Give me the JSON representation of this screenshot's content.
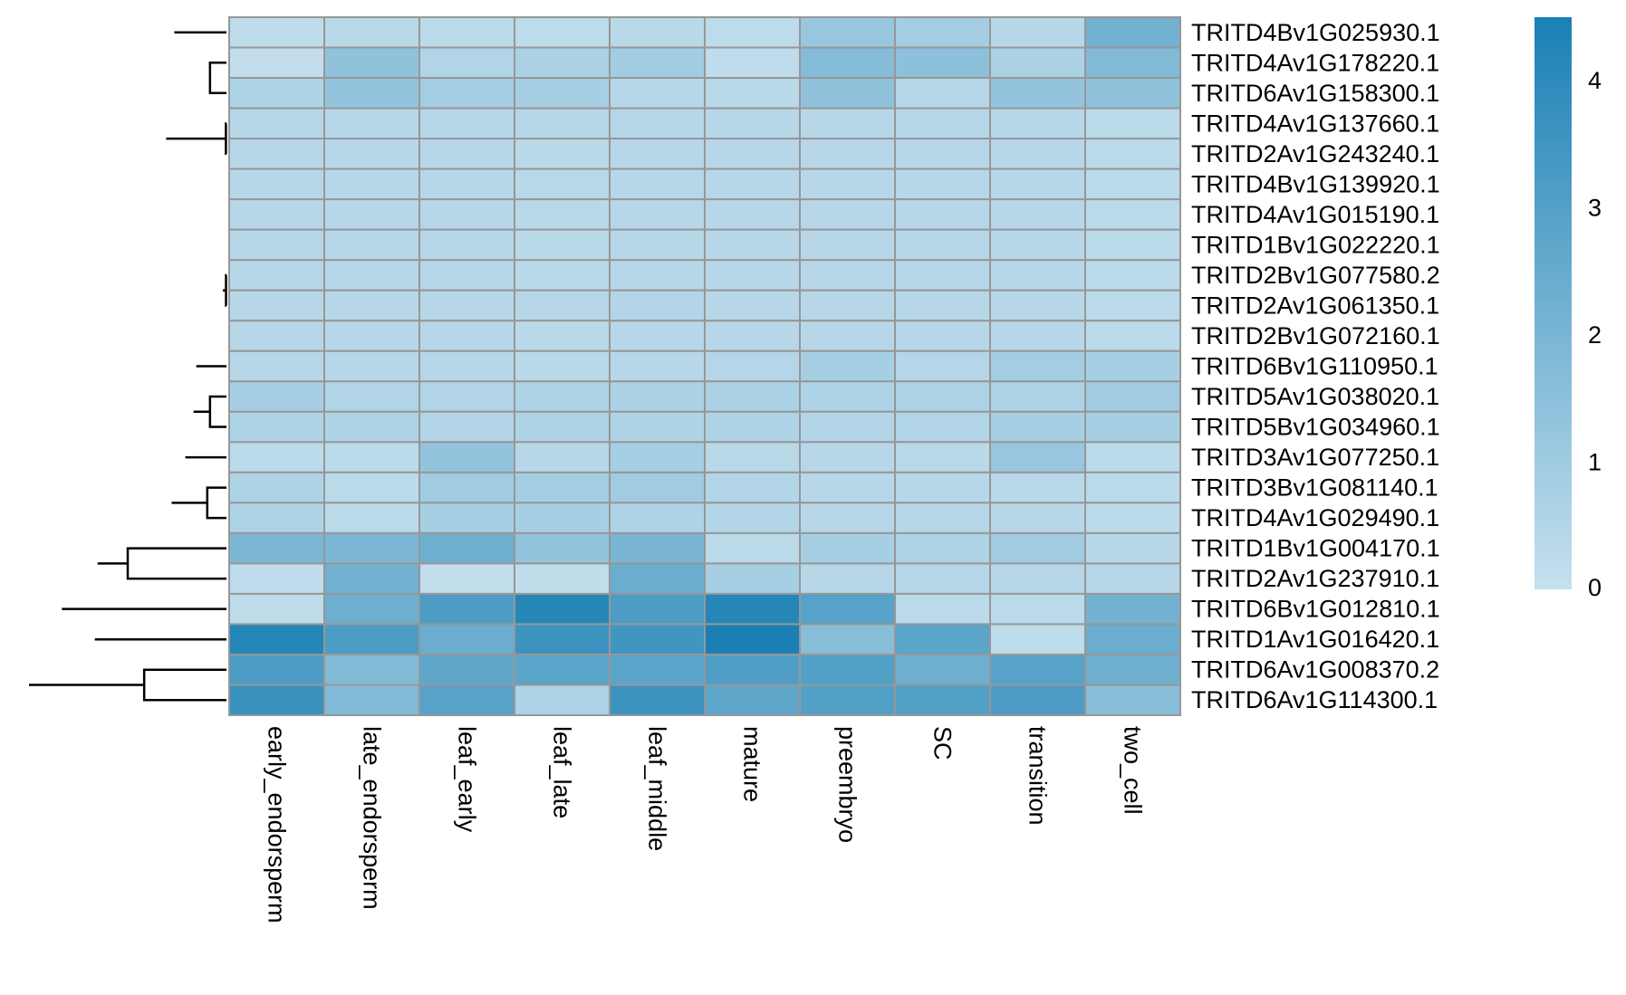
{
  "chart_data": {
    "type": "heatmap",
    "title": "",
    "xlabel": "",
    "ylabel": "",
    "columns": [
      "early_endorsperm",
      "late_endorsperm",
      "leaf_early",
      "leaf_late",
      "leaf_middle",
      "mature",
      "preembryo",
      "SC",
      "transition",
      "two_cell"
    ],
    "rows": [
      "TRITD4Bv1G025930.1",
      "TRITD4Av1G178220.1",
      "TRITD6Av1G158300.1",
      "TRITD4Av1G137660.1",
      "TRITD2Av1G243240.1",
      "TRITD4Bv1G139920.1",
      "TRITD4Av1G015190.1",
      "TRITD1Bv1G022220.1",
      "TRITD2Bv1G077580.2",
      "TRITD2Av1G061350.1",
      "TRITD2Bv1G072160.1",
      "TRITD6Bv1G110950.1",
      "TRITD5Av1G038020.1",
      "TRITD5Bv1G034960.1",
      "TRITD3Av1G077250.1",
      "TRITD3Bv1G081140.1",
      "TRITD4Av1G029490.1",
      "TRITD1Bv1G004170.1",
      "TRITD2Av1G237910.1",
      "TRITD6Bv1G012810.1",
      "TRITD1Av1G016420.1",
      "TRITD6Av1G008370.2",
      "TRITD6Av1G114300.1"
    ],
    "values": [
      [
        0.2,
        0.35,
        0.3,
        0.25,
        0.35,
        0.25,
        1.2,
        0.9,
        0.4,
        2.2
      ],
      [
        0.1,
        1.4,
        0.55,
        0.7,
        0.95,
        0.2,
        1.7,
        1.5,
        0.7,
        1.8
      ],
      [
        0.6,
        1.3,
        0.9,
        0.8,
        0.4,
        0.35,
        1.4,
        0.4,
        1.3,
        1.4
      ],
      [
        0.4,
        0.4,
        0.4,
        0.4,
        0.4,
        0.4,
        0.4,
        0.4,
        0.4,
        0.3
      ],
      [
        0.4,
        0.4,
        0.4,
        0.35,
        0.4,
        0.4,
        0.4,
        0.4,
        0.4,
        0.3
      ],
      [
        0.4,
        0.4,
        0.4,
        0.35,
        0.4,
        0.4,
        0.4,
        0.4,
        0.4,
        0.3
      ],
      [
        0.4,
        0.4,
        0.4,
        0.35,
        0.4,
        0.4,
        0.4,
        0.4,
        0.4,
        0.3
      ],
      [
        0.4,
        0.4,
        0.4,
        0.35,
        0.4,
        0.4,
        0.4,
        0.4,
        0.4,
        0.3
      ],
      [
        0.4,
        0.4,
        0.4,
        0.35,
        0.4,
        0.4,
        0.4,
        0.4,
        0.4,
        0.3
      ],
      [
        0.4,
        0.4,
        0.4,
        0.4,
        0.5,
        0.4,
        0.4,
        0.4,
        0.4,
        0.3
      ],
      [
        0.4,
        0.4,
        0.4,
        0.35,
        0.4,
        0.4,
        0.4,
        0.4,
        0.4,
        0.3
      ],
      [
        0.4,
        0.4,
        0.4,
        0.35,
        0.4,
        0.45,
        0.8,
        0.45,
        0.9,
        0.8
      ],
      [
        0.8,
        0.55,
        0.55,
        0.6,
        0.7,
        0.7,
        0.6,
        0.6,
        0.6,
        1.0
      ],
      [
        0.6,
        0.6,
        0.5,
        0.6,
        0.6,
        0.6,
        0.5,
        0.55,
        0.8,
        0.8
      ],
      [
        0.3,
        0.3,
        1.3,
        0.4,
        0.8,
        0.35,
        0.4,
        0.35,
        1.2,
        0.3
      ],
      [
        0.6,
        0.3,
        1.0,
        0.9,
        1.0,
        0.5,
        0.4,
        0.4,
        0.35,
        0.3
      ],
      [
        0.6,
        0.3,
        0.8,
        0.8,
        0.6,
        0.5,
        0.4,
        0.4,
        0.4,
        0.3
      ],
      [
        1.9,
        1.9,
        2.3,
        1.3,
        2.0,
        0.3,
        0.8,
        0.6,
        1.0,
        0.4
      ],
      [
        0.2,
        2.2,
        0.1,
        0.15,
        2.4,
        0.8,
        0.4,
        0.4,
        0.4,
        0.4
      ],
      [
        0.2,
        2.3,
        3.2,
        4.2,
        3.2,
        4.2,
        2.9,
        0.3,
        0.3,
        2.2
      ],
      [
        4.2,
        3.2,
        2.4,
        3.6,
        3.5,
        4.5,
        1.6,
        2.8,
        0.2,
        2.4
      ],
      [
        3.2,
        1.8,
        2.7,
        2.8,
        2.8,
        3.1,
        3.0,
        2.3,
        2.9,
        2.3
      ],
      [
        3.7,
        1.8,
        2.9,
        0.6,
        3.6,
        2.7,
        3.0,
        3.0,
        3.2,
        1.6
      ]
    ],
    "color_scale": {
      "min": 0,
      "max": 4.5,
      "low_color": "#c6e0ee",
      "high_color": "#1a80b4",
      "ticks": [
        0,
        1,
        2,
        3,
        4
      ]
    },
    "cell_border_color": "#979797",
    "dendrogram": {
      "order": [
        0,
        1,
        2,
        3,
        4,
        5,
        6,
        7,
        8,
        9,
        10,
        11,
        12,
        13,
        14,
        15,
        16,
        17,
        18,
        19,
        20,
        21,
        22
      ],
      "merges": [
        [
          1,
          2,
          0.3
        ],
        [
          0,
          24,
          0.95
        ],
        [
          3,
          4,
          0.01
        ],
        [
          26,
          5,
          0.012
        ],
        [
          27,
          6,
          0.014
        ],
        [
          28,
          7,
          0.05
        ],
        [
          8,
          9,
          0.008
        ],
        [
          30,
          10,
          0.018
        ],
        [
          29,
          31,
          0.065
        ],
        [
          12,
          13,
          0.3
        ],
        [
          11,
          33,
          0.55
        ],
        [
          32,
          34,
          0.6
        ],
        [
          15,
          16,
          0.35
        ],
        [
          14,
          36,
          0.75
        ],
        [
          35,
          37,
          1.0
        ],
        [
          25,
          38,
          1.1
        ],
        [
          17,
          18,
          1.8
        ],
        [
          39,
          40,
          2.35
        ],
        [
          21,
          22,
          1.5
        ],
        [
          20,
          42,
          2.4
        ],
        [
          19,
          43,
          3.0
        ],
        [
          41,
          44,
          3.6
        ]
      ]
    }
  }
}
